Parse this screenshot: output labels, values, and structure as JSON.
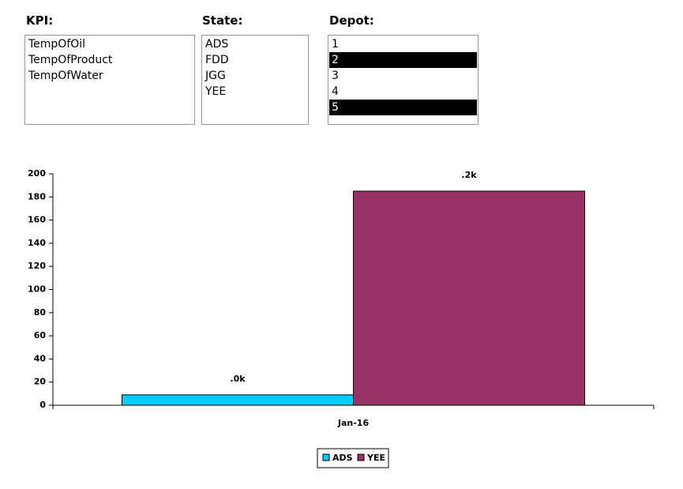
{
  "filters": [
    {
      "label": "KPI:",
      "items": [
        "TempOfOil",
        "TempOfProduct",
        "TempOfWater"
      ],
      "selected": [
        false,
        false,
        false
      ]
    },
    {
      "label": "State:",
      "items": [
        "ADS",
        "FDD",
        "JGG",
        "YEE"
      ],
      "selected": [
        false,
        false,
        false,
        false
      ]
    },
    {
      "label": "Depot:",
      "items": [
        "1",
        "2",
        "3",
        "4",
        "5"
      ],
      "selected": [
        false,
        true,
        false,
        false,
        true
      ]
    }
  ],
  "chart_data": {
    "type": "bar",
    "categories": [
      "Jan-16"
    ],
    "series": [
      {
        "name": "ADS",
        "color": "#00ccff",
        "values": [
          9
        ],
        "value_labels": [
          ".0k"
        ]
      },
      {
        "name": "YEE",
        "color": "#993366",
        "values": [
          185
        ],
        "value_labels": [
          ".2k"
        ]
      }
    ],
    "ylim": [
      0,
      200
    ],
    "yticks": [
      0,
      20,
      40,
      60,
      80,
      100,
      120,
      140,
      160,
      180,
      200
    ],
    "grid": false,
    "legend": "bottom"
  }
}
